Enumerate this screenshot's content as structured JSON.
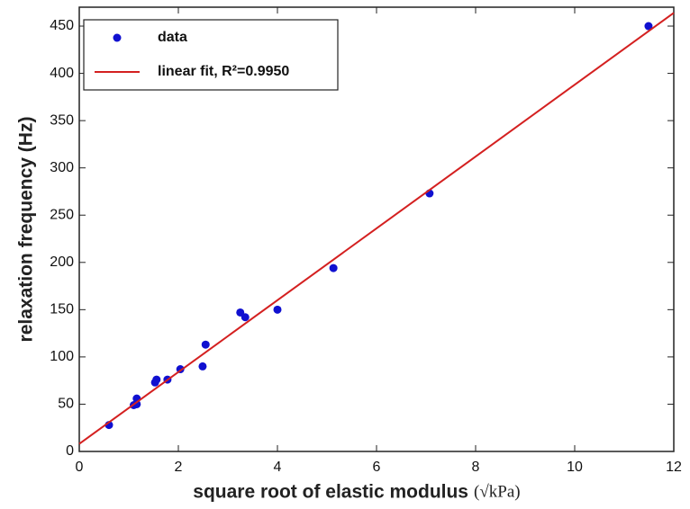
{
  "chart_data": {
    "type": "scatter",
    "xlabel": "square root of elastic modulus",
    "xunit": "(√kPa)",
    "ylabel": "relaxation frequency (Hz)",
    "xlim": [
      0,
      12
    ],
    "xticks": [
      0,
      2,
      4,
      6,
      8,
      10,
      12
    ],
    "ylim": [
      0,
      470
    ],
    "yticks": [
      0,
      50,
      100,
      150,
      200,
      250,
      300,
      350,
      400,
      450
    ],
    "legend": "upper left",
    "series": [
      {
        "name": "data",
        "mode": "markers",
        "color": "#1010d0",
        "x": [
          0.6,
          1.1,
          1.16,
          1.16,
          1.53,
          1.56,
          1.78,
          2.04,
          2.49,
          2.55,
          3.25,
          3.35,
          4.0,
          5.13,
          7.07,
          11.49
        ],
        "values": [
          28,
          49,
          50,
          56,
          73,
          76,
          76,
          87,
          90,
          113,
          147,
          142,
          150,
          194,
          273,
          450
        ]
      },
      {
        "name": "linear fit, R²=0.9950",
        "mode": "line",
        "color": "#d42020",
        "x": [
          0,
          12
        ],
        "values": [
          8,
          464
        ]
      }
    ]
  }
}
